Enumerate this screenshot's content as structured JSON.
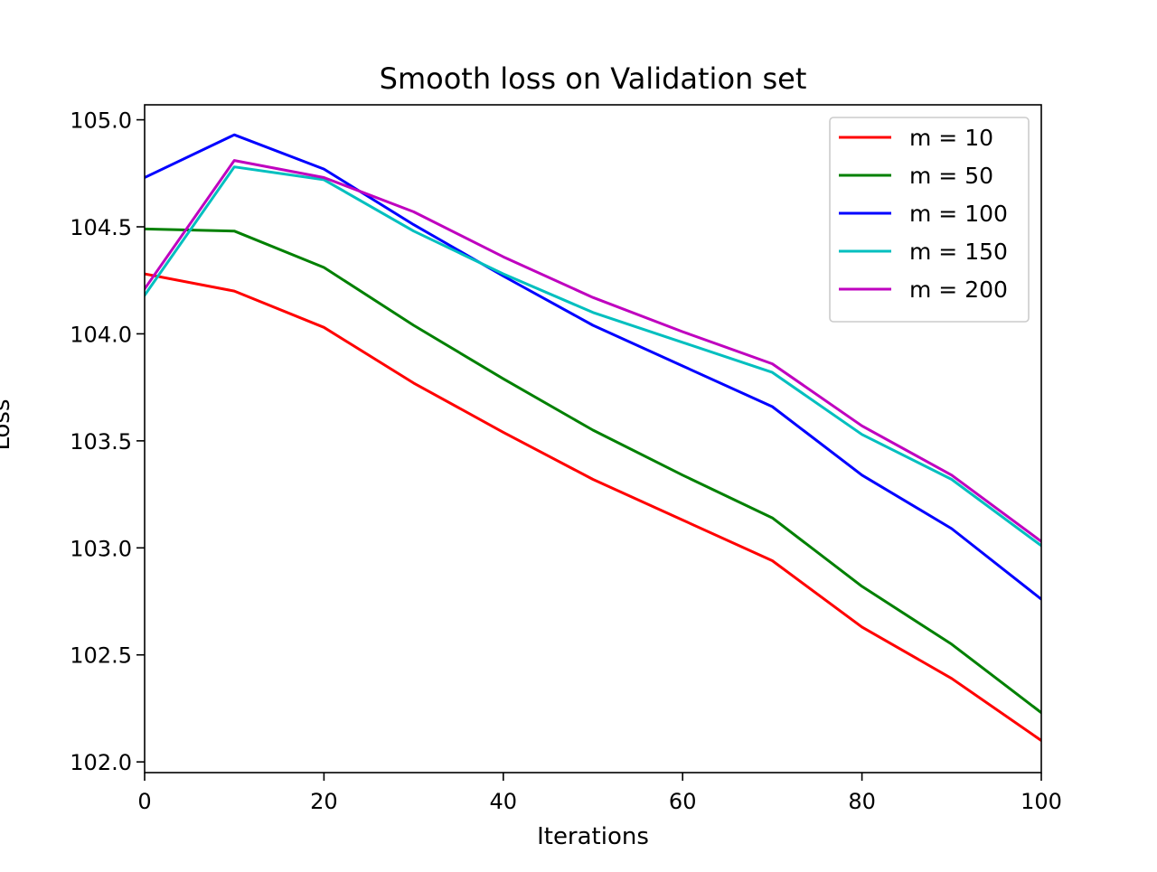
{
  "chart_data": {
    "type": "line",
    "title": "Smooth loss on Validation set",
    "xlabel": "Iterations",
    "ylabel": "Loss",
    "xlim": [
      0,
      100
    ],
    "ylim": [
      101.95,
      105.07
    ],
    "x_ticks": [
      0,
      20,
      40,
      60,
      80,
      100
    ],
    "x_tick_labels": [
      "0",
      "20",
      "40",
      "60",
      "80",
      "100"
    ],
    "y_ticks": [
      102.0,
      102.5,
      103.0,
      103.5,
      104.0,
      104.5,
      105.0
    ],
    "y_tick_labels": [
      "102.0",
      "102.5",
      "103.0",
      "103.5",
      "104.0",
      "104.5",
      "105.0"
    ],
    "grid": false,
    "legend_position": "top-right",
    "x": [
      0,
      10,
      20,
      30,
      40,
      50,
      60,
      70,
      80,
      90,
      100
    ],
    "series": [
      {
        "name": "m = 10",
        "color": "#ff0000",
        "values": [
          104.28,
          104.2,
          104.03,
          103.77,
          103.54,
          103.32,
          103.13,
          102.94,
          102.63,
          102.39,
          102.1
        ]
      },
      {
        "name": "m = 50",
        "color": "#008000",
        "values": [
          104.49,
          104.48,
          104.31,
          104.04,
          103.79,
          103.55,
          103.34,
          103.14,
          102.82,
          102.55,
          102.23
        ]
      },
      {
        "name": "m = 100",
        "color": "#0000ff",
        "values": [
          104.73,
          104.93,
          104.77,
          104.51,
          104.27,
          104.04,
          103.85,
          103.66,
          103.34,
          103.09,
          102.76
        ]
      },
      {
        "name": "m = 150",
        "color": "#00bfbf",
        "values": [
          104.18,
          104.78,
          104.72,
          104.48,
          104.28,
          104.1,
          103.96,
          103.82,
          103.53,
          103.32,
          103.01
        ]
      },
      {
        "name": "m = 200",
        "color": "#bf00bf",
        "values": [
          104.21,
          104.81,
          104.73,
          104.57,
          104.36,
          104.17,
          104.01,
          103.86,
          103.57,
          103.34,
          103.03
        ]
      }
    ]
  }
}
